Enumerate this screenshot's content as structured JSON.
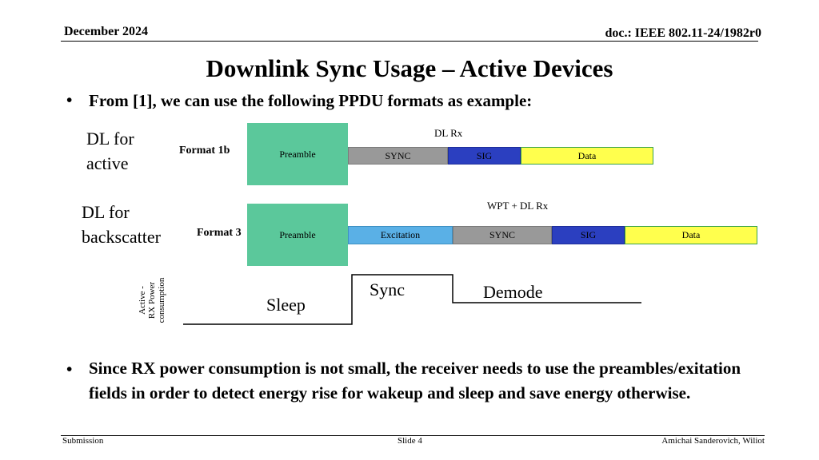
{
  "header": {
    "date": "December 2024",
    "doc": "doc.: IEEE 802.11-24/1982r0"
  },
  "title": "Downlink Sync Usage – Active Devices",
  "bullets": [
    {
      "symbol": "•",
      "text": "From [1], we can use the following PPDU formats as example:"
    },
    {
      "symbol": "•",
      "text": "Since RX power consumption is not small, the receiver needs to use the preambles/exitation fields in order to detect energy rise for wakeup and sleep and save energy otherwise."
    }
  ],
  "diagram": {
    "row1": {
      "label_line1": "DL for",
      "label_line2": "active",
      "format": "Format 1b",
      "above": "DL Rx",
      "fields": {
        "preamble": "Preamble",
        "sync": "SYNC",
        "sig": "SIG",
        "data": "Data"
      }
    },
    "row2": {
      "label_line1": "DL for",
      "label_line2": "backscatter",
      "format": "Format 3",
      "above": "WPT + DL Rx",
      "fields": {
        "preamble": "Preamble",
        "excitation": "Excitation",
        "sync": "SYNC",
        "sig": "SIG",
        "data": "Data"
      }
    },
    "power": {
      "axis_line1": "Active -",
      "axis_line2": "RX Power",
      "axis_line3": "consumption",
      "sleep": "Sleep",
      "sync": "Sync",
      "demode": "Demode"
    }
  },
  "footer": {
    "left": "Submission",
    "center": "Slide 4",
    "right": "Amichai Sanderovich, Wiliot"
  }
}
